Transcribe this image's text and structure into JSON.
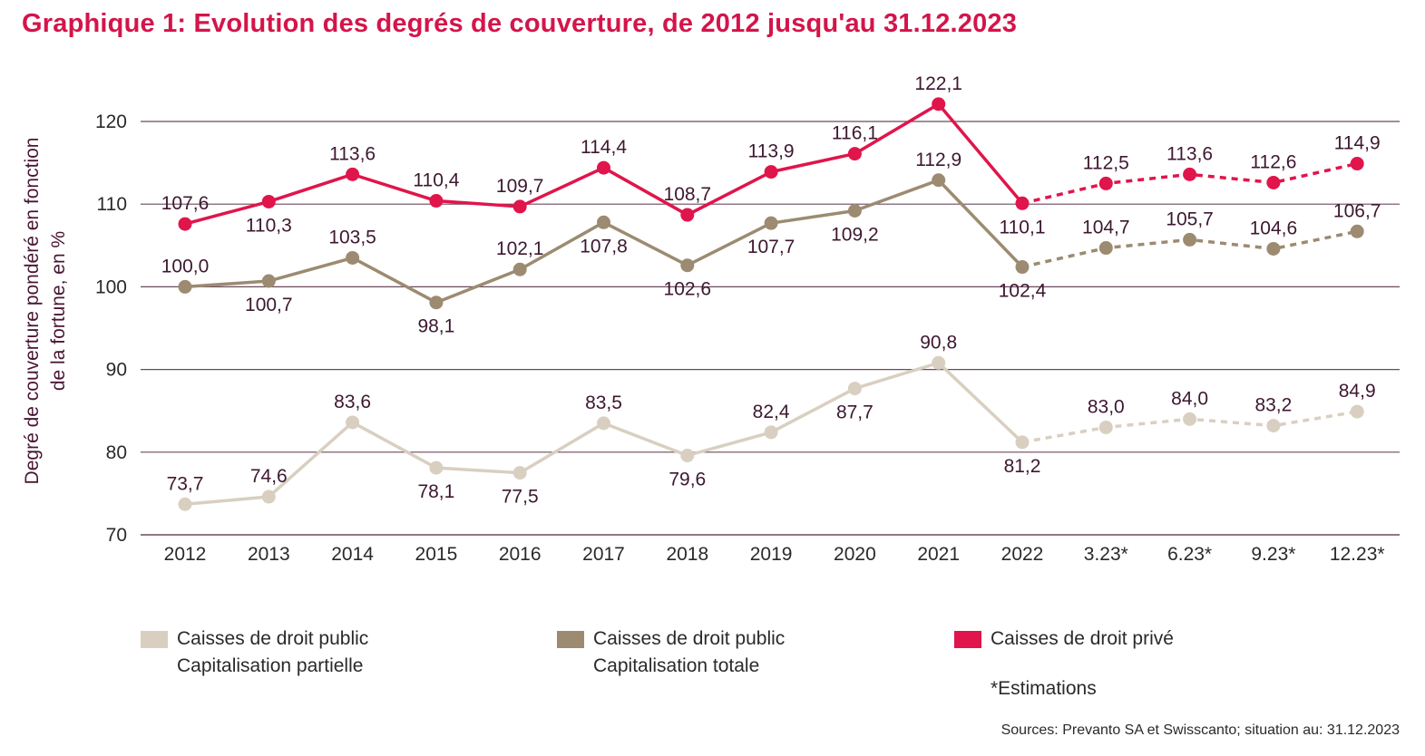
{
  "chart_data": {
    "type": "line",
    "title": "Graphique 1: Evolution des degrés de couverture, de 2012 jusqu'au 31.12.2023",
    "ylabel": "Degré de couverture pondéré en fonction de la fortune, en %",
    "ylabel_lines": [
      "Degré de couverture pondéré en fonction",
      "de la fortune, en %"
    ],
    "ylim": [
      70,
      125
    ],
    "yticks": [
      70,
      80,
      90,
      100,
      110,
      120
    ],
    "categories": [
      "2012",
      "2013",
      "2014",
      "2015",
      "2016",
      "2017",
      "2018",
      "2019",
      "2020",
      "2021",
      "2022",
      "3.23*",
      "6.23*",
      "9.23*",
      "12.23*"
    ],
    "estimate_start_index": 10,
    "grid": true,
    "legend_position": "bottom",
    "series": [
      {
        "name": "Caisses de droit privé",
        "color": "#e0154b",
        "values": [
          107.6,
          110.3,
          113.6,
          110.4,
          109.7,
          114.4,
          108.7,
          113.9,
          116.1,
          122.1,
          110.1,
          112.5,
          113.6,
          112.6,
          114.9
        ],
        "labels": [
          "107,6",
          "110,3",
          "113,6",
          "110,4",
          "109,7",
          "114,4",
          "108,7",
          "113,9",
          "116,1",
          "122,1",
          "110,1",
          "112,5",
          "113,6",
          "112,6",
          "114,9"
        ],
        "label_pos": [
          "above",
          "below",
          "above",
          "above",
          "above",
          "above",
          "above",
          "above",
          "above",
          "above",
          "below",
          "above",
          "above",
          "above",
          "above"
        ]
      },
      {
        "name": "Caisses de droit public Capitalisation totale",
        "color": "#9c8b71",
        "values": [
          100.0,
          100.7,
          103.5,
          98.1,
          102.1,
          107.8,
          102.6,
          107.7,
          109.2,
          112.9,
          102.4,
          104.7,
          105.7,
          104.6,
          106.7
        ],
        "labels": [
          "100,0",
          "100,7",
          "103,5",
          "98,1",
          "102,1",
          "107,8",
          "102,6",
          "107,7",
          "109,2",
          "112,9",
          "102,4",
          "104,7",
          "105,7",
          "104,6",
          "106,7"
        ],
        "label_pos": [
          "above",
          "below",
          "above",
          "below",
          "above",
          "below",
          "below",
          "below",
          "below",
          "above",
          "below",
          "above",
          "above",
          "above",
          "above"
        ]
      },
      {
        "name": "Caisses de droit public Capitalisation partielle",
        "color": "#d9cfc1",
        "values": [
          73.7,
          74.6,
          83.6,
          78.1,
          77.5,
          83.5,
          79.6,
          82.4,
          87.7,
          90.8,
          81.2,
          83.0,
          84.0,
          83.2,
          84.9
        ],
        "labels": [
          "73,7",
          "74,6",
          "83,6",
          "78,1",
          "77,5",
          "83,5",
          "79,6",
          "82,4",
          "87,7",
          "90,8",
          "81,2",
          "83,0",
          "84,0",
          "83,2",
          "84,9"
        ],
        "label_pos": [
          "above",
          "above",
          "above",
          "below",
          "below",
          "above",
          "below",
          "above",
          "below",
          "above",
          "below",
          "above",
          "above",
          "above",
          "above"
        ]
      }
    ]
  },
  "legend": {
    "items": [
      {
        "text": "Caisses de droit public\nCapitalisation partielle",
        "color": "#d9cfc1"
      },
      {
        "text": "Caisses de droit public\nCapitalisation totale",
        "color": "#9c8b71"
      },
      {
        "text": "Caisses de droit privé",
        "color": "#e0154b"
      }
    ],
    "estimations_note": "*Estimations"
  },
  "source": "Sources: Prevanto SA et Swisscanto; situation au: 31.12.2023"
}
